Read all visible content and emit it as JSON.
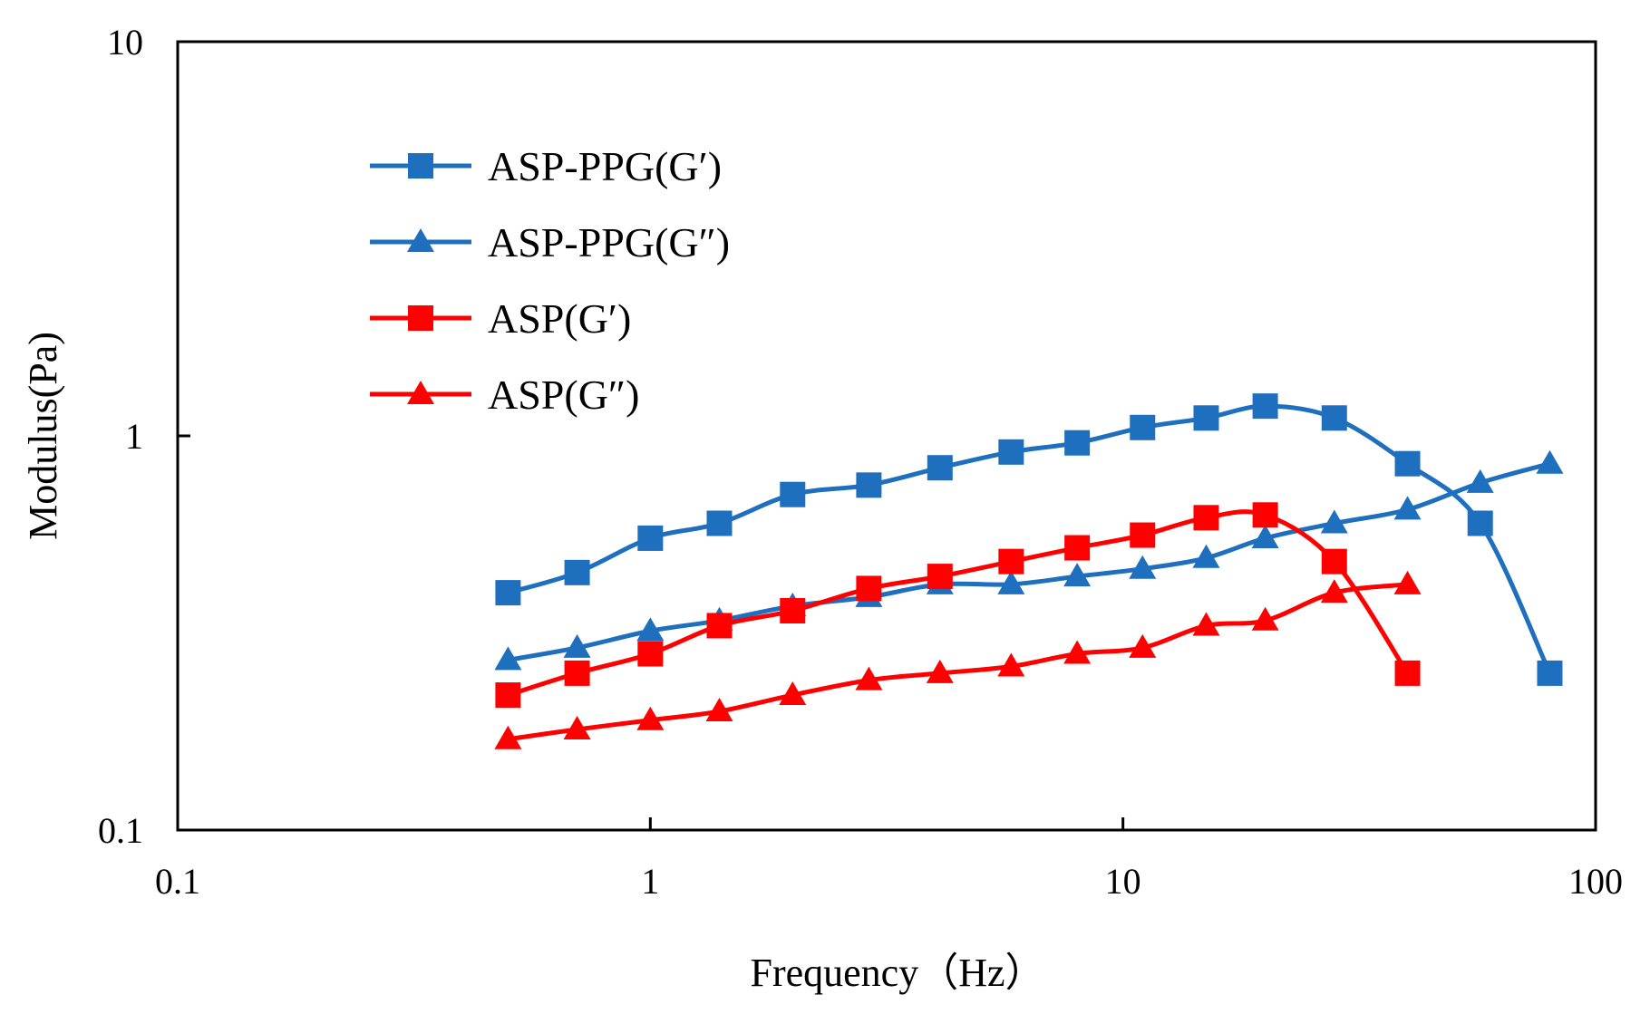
{
  "chart_data": {
    "type": "line",
    "title": "",
    "xlabel": "Frequency（Hz）",
    "ylabel": "Modulus(Pa)",
    "xscale": "log",
    "yscale": "log",
    "xlim": [
      0.1,
      100
    ],
    "ylim": [
      0.1,
      10
    ],
    "x_ticks": [
      0.1,
      1,
      10,
      100
    ],
    "y_ticks": [
      0.1,
      1,
      10
    ],
    "x_tick_labels": [
      "0.1",
      "1",
      "10",
      "100"
    ],
    "y_tick_labels": [
      "0.1",
      "1",
      "10"
    ],
    "grid": false,
    "legend_position": "top-left",
    "series": [
      {
        "name": "ASP-PPG(G′)",
        "color": "#1f6fbf",
        "marker": "square",
        "x": [
          0.5,
          0.7,
          1.0,
          1.4,
          2.0,
          2.9,
          4.1,
          5.8,
          8.0,
          11.0,
          15.0,
          20.0,
          28.0,
          40.0,
          57.0,
          80.0
        ],
        "y": [
          0.4,
          0.45,
          0.55,
          0.6,
          0.71,
          0.75,
          0.83,
          0.91,
          0.96,
          1.05,
          1.11,
          1.19,
          1.11,
          0.85,
          0.6,
          0.25
        ]
      },
      {
        "name": "ASP-PPG(G″)",
        "color": "#1f6fbf",
        "marker": "triangle",
        "x": [
          0.5,
          0.7,
          1.0,
          1.4,
          2.0,
          2.9,
          4.1,
          5.8,
          8.0,
          11.0,
          15.0,
          20.0,
          28.0,
          40.0,
          57.0,
          80.0
        ],
        "y": [
          0.27,
          0.29,
          0.32,
          0.34,
          0.37,
          0.39,
          0.42,
          0.42,
          0.44,
          0.46,
          0.49,
          0.55,
          0.6,
          0.65,
          0.76,
          0.85
        ]
      },
      {
        "name": "ASP(G′)",
        "color": "#ff0000",
        "marker": "square",
        "x": [
          0.5,
          0.7,
          1.0,
          1.4,
          2.0,
          2.9,
          4.1,
          5.8,
          8.0,
          11.0,
          15.0,
          20.0,
          28.0,
          40.0
        ],
        "y": [
          0.22,
          0.25,
          0.28,
          0.33,
          0.36,
          0.41,
          0.44,
          0.48,
          0.52,
          0.56,
          0.62,
          0.63,
          0.48,
          0.25
        ]
      },
      {
        "name": "ASP(G″)",
        "color": "#ff0000",
        "marker": "triangle",
        "x": [
          0.5,
          0.7,
          1.0,
          1.4,
          2.0,
          2.9,
          4.1,
          5.8,
          8.0,
          11.0,
          15.0,
          20.0,
          28.0,
          40.0
        ],
        "y": [
          0.17,
          0.18,
          0.19,
          0.2,
          0.22,
          0.24,
          0.25,
          0.26,
          0.28,
          0.29,
          0.33,
          0.34,
          0.4,
          0.42
        ]
      }
    ]
  }
}
